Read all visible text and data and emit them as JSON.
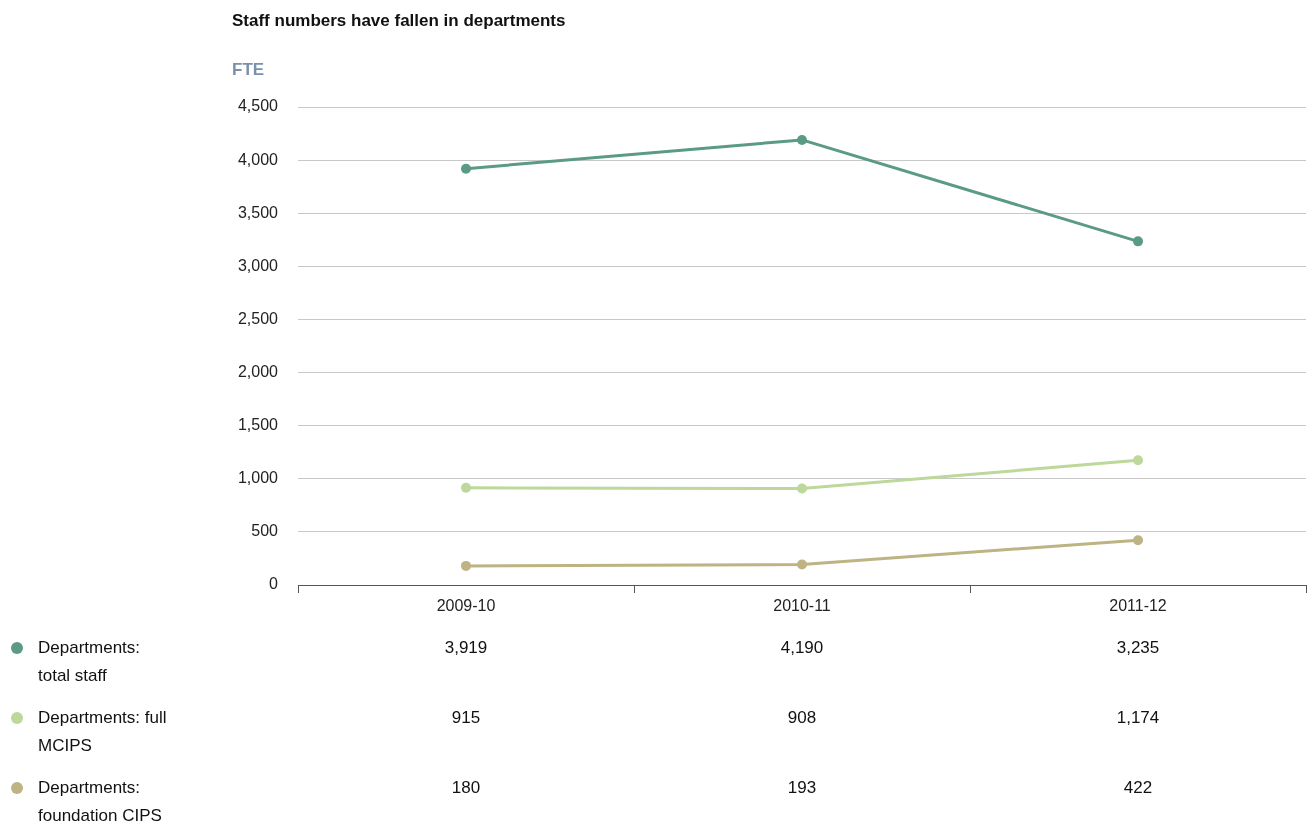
{
  "chart_data": {
    "type": "line",
    "title": "Staff numbers have fallen in departments",
    "ylabel": "FTE",
    "categories": [
      "2009-10",
      "2010-11",
      "2011-12"
    ],
    "series": [
      {
        "name": "Departments: total staff",
        "color": "#5a9a87",
        "values": [
          3919,
          4190,
          3235
        ],
        "value_labels": [
          "3,919",
          "4,190",
          "3,235"
        ]
      },
      {
        "name": "Departments: full MCIPS",
        "color": "#bcd89a",
        "values": [
          915,
          908,
          1174
        ],
        "value_labels": [
          "915",
          "908",
          "1,174"
        ]
      },
      {
        "name": "Departments: foundation CIPS",
        "color": "#bdb383",
        "values": [
          180,
          193,
          422
        ],
        "value_labels": [
          "180",
          "193",
          "422"
        ]
      }
    ],
    "ylim": [
      0,
      4500
    ],
    "yticks": [
      0,
      500,
      {
        "value": 1000,
        "label": "1,000"
      },
      {
        "value": 1500,
        "label": "1,500"
      },
      {
        "value": 2000,
        "label": "2,000"
      },
      {
        "value": 2500,
        "label": "2,500"
      },
      {
        "value": 3000,
        "label": "3,000"
      },
      {
        "value": 3500,
        "label": "3,500"
      },
      {
        "value": 4000,
        "label": "4,000"
      },
      {
        "value": 4500,
        "label": "4,500"
      }
    ],
    "grid": "y",
    "legend": "bottom left",
    "marker": "circle",
    "line_style": "solid"
  }
}
